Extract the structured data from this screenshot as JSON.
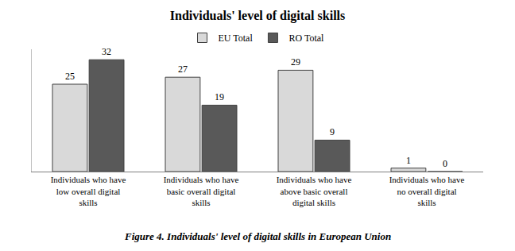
{
  "chart_data": {
    "type": "bar",
    "title": "Individuals' level of digital skills",
    "caption": "Figure 4. Individuals' level of digital skills in European Union",
    "categories": [
      "Individuals who have low overall digital skills",
      "Individuals who have basic overall digital skills",
      "Individuals who have above basic overall digital skills",
      "Individuals who have no overall digital skills"
    ],
    "series": [
      {
        "name": "EU Total",
        "color": "#d9d9d9",
        "values": [
          25,
          27,
          29,
          1
        ]
      },
      {
        "name": "RO Total",
        "color": "#595959",
        "values": [
          32,
          19,
          9,
          0
        ]
      }
    ],
    "ylim": [
      0,
      35
    ],
    "data_labels": true,
    "legend": "top",
    "tick_labels": "x",
    "grid": false
  }
}
